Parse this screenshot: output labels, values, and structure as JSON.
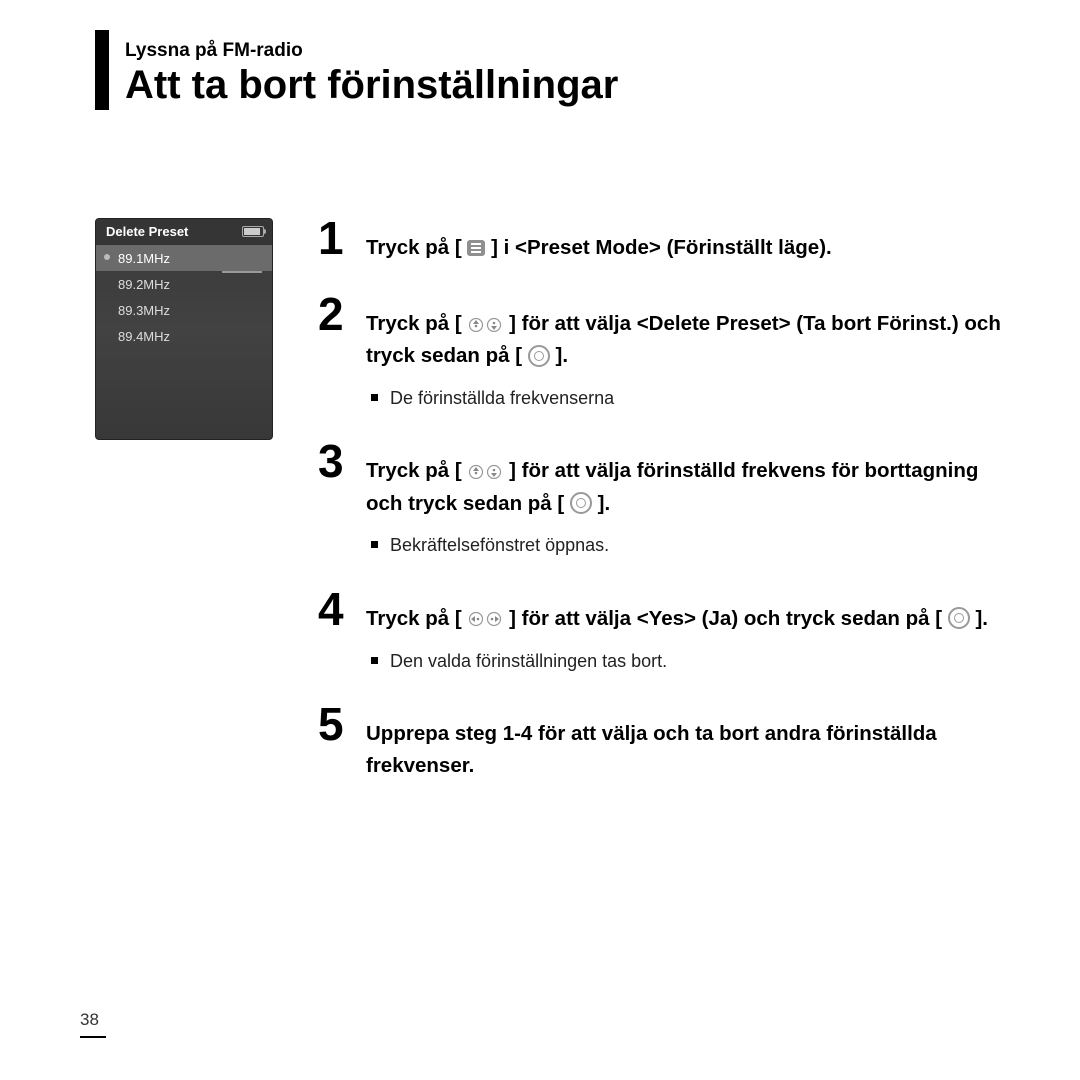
{
  "header": {
    "section_label": "Lyssna på FM-radio",
    "title": "Att ta bort förinställningar"
  },
  "device": {
    "screen_title": "Delete Preset",
    "presets": [
      "89.1MHz",
      "89.2MHz",
      "89.3MHz",
      "89.4MHz"
    ],
    "selected_index": 0,
    "bg_color": "#4a4a4a"
  },
  "steps": [
    {
      "num": "1",
      "main_parts": [
        "Tryck på [ ",
        "icon:menu",
        " ] i <Preset Mode> (Förinställt läge)."
      ],
      "sub": null
    },
    {
      "num": "2",
      "main_parts": [
        "Tryck på [ ",
        "icon:updown",
        " ] för att välja <Delete Preset> (Ta bort Förinst.) och tryck sedan på [ ",
        "icon:ok",
        " ]."
      ],
      "sub": "De förinställda frekvenserna"
    },
    {
      "num": "3",
      "main_parts": [
        "Tryck på [ ",
        "icon:updown",
        " ] för att välja förinställd frekvens för borttagning och tryck sedan på [ ",
        "icon:ok",
        " ]."
      ],
      "sub": "Bekräftelsefönstret öppnas."
    },
    {
      "num": "4",
      "main_parts": [
        "Tryck på [ ",
        "icon:leftright",
        " ] för att välja <Yes> (Ja) och tryck sedan på [ ",
        "icon:ok",
        " ]."
      ],
      "sub": "Den valda förinställningen tas bort."
    },
    {
      "num": "5",
      "main_parts": [
        "Upprepa steg 1-4 för att välja och ta bort andra förinställda frekvenser."
      ],
      "sub": null
    }
  ],
  "page_number": "38"
}
